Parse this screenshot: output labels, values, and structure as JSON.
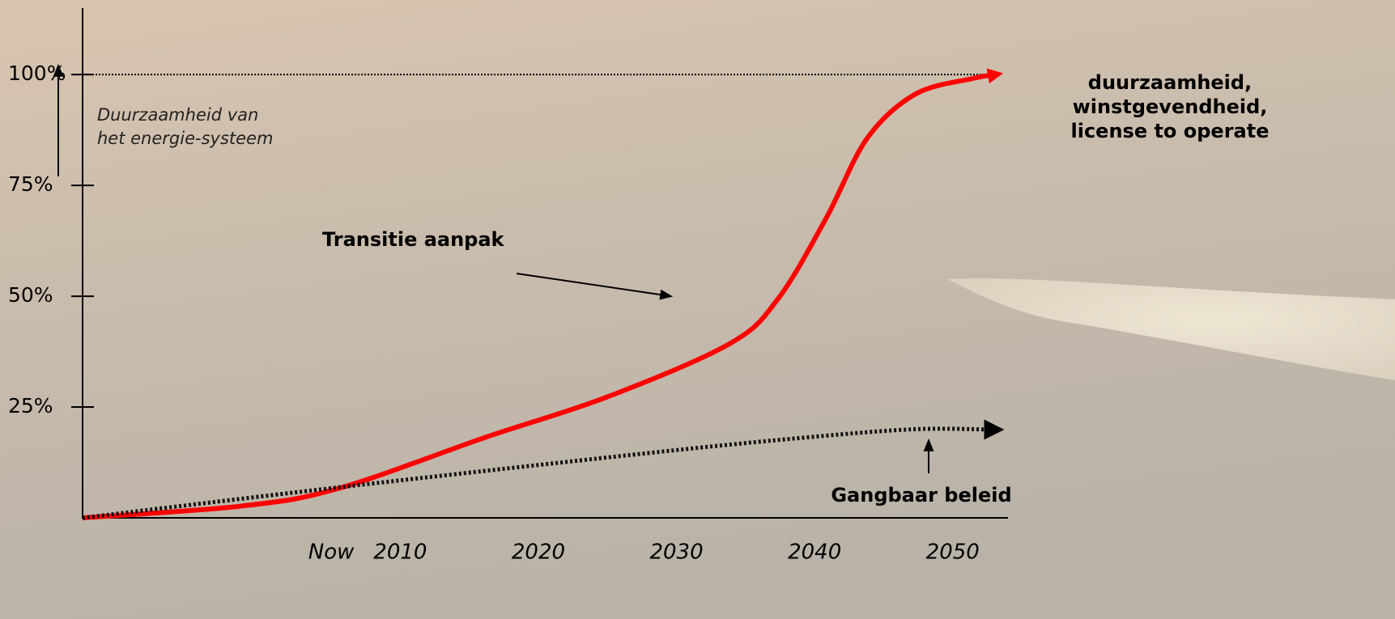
{
  "chart_data": {
    "type": "line",
    "xlim": [
      1987,
      2054
    ],
    "xticks": [
      {
        "value": 2005,
        "label": "Now"
      },
      {
        "value": 2010,
        "label": "2010"
      },
      {
        "value": 2020,
        "label": "2020"
      },
      {
        "value": 2030,
        "label": "2030"
      },
      {
        "value": 2040,
        "label": "2040"
      },
      {
        "value": 2050,
        "label": "2050"
      }
    ],
    "ylim": [
      0,
      115
    ],
    "yticks": [
      {
        "value": 25,
        "label": "25%"
      },
      {
        "value": 50,
        "label": "50%"
      },
      {
        "value": 75,
        "label": "75%"
      },
      {
        "value": 100,
        "label": "100%"
      }
    ],
    "hline": 100,
    "y_label": [
      "Duurzaamheid van",
      "het energie-systeem"
    ],
    "annotation": [
      "duurzaamheid,",
      "winstgevendheid,",
      "license to operate"
    ],
    "series": [
      {
        "name": "Transitie aanpak",
        "color": "#ff0000",
        "style": "solid",
        "x": [
          1987,
          1998.6,
          2005.6,
          2016.2,
          2025,
          2033.8,
          2037.3,
          2040.8,
          2043.8,
          2047.3,
          2051.4,
          2053.1
        ],
        "values": [
          0,
          2.7,
          6.7,
          18.2,
          27.3,
          39.2,
          49.2,
          67.4,
          85.6,
          95.6,
          99.1,
          100
        ]
      },
      {
        "name": "Gangbaar beleid",
        "color": "#111111",
        "style": "dotted",
        "x": [
          1987,
          2005.6,
          2027.9,
          2039.6,
          2047.3,
          2053
        ],
        "values": [
          0,
          6.9,
          14.6,
          18.2,
          20,
          19.9
        ]
      }
    ]
  }
}
